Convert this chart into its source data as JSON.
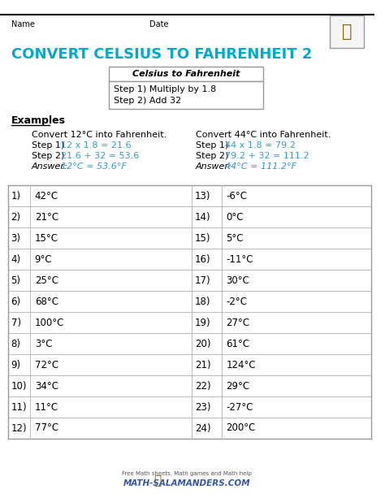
{
  "title": "CONVERT CELSIUS TO FAHRENHEIT 2",
  "title_color": "#00AACC",
  "name_label": "Name",
  "date_label": "Date",
  "box_title": "Celsius to Fahrenheit",
  "box_step1": "Step 1) Multiply by 1.8",
  "box_step2": "Step 2) Add 32",
  "examples_label": "Examples",
  "ex1_intro": "Convert 12°C into Fahrenheit.",
  "ex1_step1_color": "12 x 1.8 = 21.6",
  "ex1_step2_color": "21.6 + 32 = 53.6",
  "ex1_ans_color": "12°C = 53.6°F",
  "ex2_intro": "Convert 44°C into Fahrenheit.",
  "ex2_step1_color": "44 x 1.8 = 79.2",
  "ex2_step2_color": "79.2 + 32 = 111.2",
  "ex2_ans_color": "44°C = 111.2°F",
  "highlight_color": "#3399CC",
  "left_items": [
    "42°C",
    "21°C",
    "15°C",
    "9°C",
    "25°C",
    "68°C",
    "100°C",
    "3°C",
    "72°C",
    "34°C",
    "11°C",
    "77°C"
  ],
  "right_items": [
    "-6°C",
    "0°C",
    "5°C",
    "-11°C",
    "30°C",
    "-2°C",
    "27°C",
    "61°C",
    "124°C",
    "29°C",
    "-27°C",
    "200°C"
  ],
  "bg_color": "#FFFFFF",
  "border_color": "#999999",
  "table_line_color": "#BBBBBB"
}
